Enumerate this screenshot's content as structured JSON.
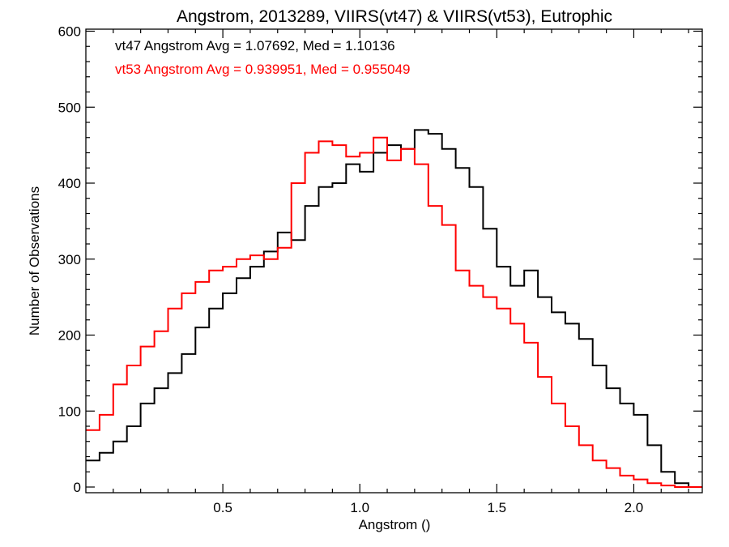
{
  "chart_data": {
    "type": "line",
    "title": "Angstrom, 2013289, VIIRS(vt47) & VIIRS(vt53), Eutrophic",
    "xlabel": "Angstrom ()",
    "ylabel": "Number of Observations",
    "xlim": [
      0.0,
      2.25
    ],
    "ylim": [
      0,
      600
    ],
    "x_ticks": [
      0.5,
      1.0,
      1.5,
      2.0
    ],
    "x_tick_labels": [
      "0.5",
      "1.0",
      "1.5",
      "2.0"
    ],
    "y_ticks": [
      0,
      100,
      200,
      300,
      400,
      500,
      600
    ],
    "y_tick_labels": [
      "0",
      "100",
      "200",
      "300",
      "400",
      "500",
      "600"
    ],
    "grid": false,
    "annotations": [
      {
        "text": "vt47 Angstrom Avg = 1.07692, Med = 1.10136",
        "color": "#000000"
      },
      {
        "text": "vt53 Angstrom Avg = 0.939951, Med = 0.955049",
        "color": "#ff0000"
      }
    ],
    "series": [
      {
        "color": "#000000",
        "style": "step",
        "x": [
          0.0,
          0.05,
          0.1,
          0.15,
          0.2,
          0.25,
          0.3,
          0.35,
          0.4,
          0.45,
          0.5,
          0.55,
          0.6,
          0.65,
          0.7,
          0.75,
          0.8,
          0.85,
          0.9,
          0.95,
          1.0,
          1.05,
          1.1,
          1.15,
          1.2,
          1.25,
          1.3,
          1.35,
          1.4,
          1.45,
          1.5,
          1.55,
          1.6,
          1.65,
          1.7,
          1.75,
          1.8,
          1.85,
          1.9,
          1.95,
          2.0,
          2.05,
          2.1,
          2.15,
          2.2,
          2.25
        ],
        "values": [
          35,
          45,
          60,
          80,
          110,
          130,
          150,
          175,
          210,
          235,
          255,
          275,
          290,
          310,
          335,
          325,
          370,
          395,
          400,
          425,
          415,
          440,
          450,
          445,
          470,
          465,
          445,
          420,
          395,
          340,
          290,
          265,
          285,
          250,
          230,
          215,
          195,
          160,
          130,
          110,
          95,
          55,
          20,
          5,
          0,
          0
        ]
      },
      {
        "color": "#ff0000",
        "style": "step",
        "x": [
          0.0,
          0.05,
          0.1,
          0.15,
          0.2,
          0.25,
          0.3,
          0.35,
          0.4,
          0.45,
          0.5,
          0.55,
          0.6,
          0.65,
          0.7,
          0.75,
          0.8,
          0.85,
          0.9,
          0.95,
          1.0,
          1.05,
          1.1,
          1.15,
          1.2,
          1.25,
          1.3,
          1.35,
          1.4,
          1.45,
          1.5,
          1.55,
          1.6,
          1.65,
          1.7,
          1.75,
          1.8,
          1.85,
          1.9,
          1.95,
          2.0,
          2.05,
          2.1,
          2.15,
          2.2,
          2.25
        ],
        "values": [
          75,
          95,
          135,
          160,
          185,
          205,
          235,
          255,
          270,
          285,
          290,
          300,
          305,
          300,
          315,
          400,
          440,
          455,
          450,
          435,
          440,
          460,
          430,
          445,
          425,
          370,
          345,
          285,
          265,
          250,
          235,
          215,
          190,
          145,
          110,
          80,
          55,
          35,
          25,
          15,
          10,
          5,
          2,
          0,
          0,
          0
        ]
      }
    ]
  }
}
